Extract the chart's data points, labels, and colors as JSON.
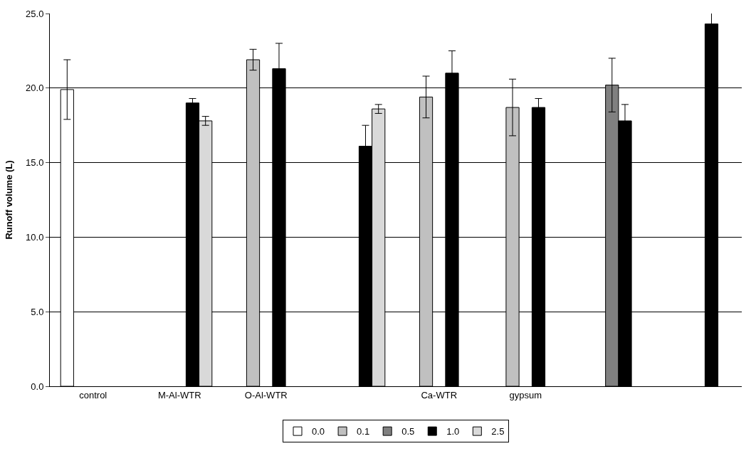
{
  "chart_data": {
    "type": "bar",
    "ylabel": "Runoff volume (L)",
    "categories": [
      "control",
      "M-Al-WTR",
      "O-Al-WTR",
      null,
      "Ca-WTR",
      "gypsum",
      null,
      null
    ],
    "series": [
      {
        "name": "0.0",
        "color": "#ffffff",
        "values": [
          19.9,
          null,
          null,
          null,
          null,
          null,
          null,
          null
        ],
        "errors": [
          2.0,
          null,
          null,
          null,
          null,
          null,
          null,
          null
        ]
      },
      {
        "name": "0.1",
        "color": "#c0c0c0",
        "values": [
          null,
          null,
          21.9,
          null,
          19.4,
          18.7,
          null,
          null
        ],
        "errors": [
          null,
          null,
          0.7,
          null,
          1.4,
          1.9,
          null,
          null
        ]
      },
      {
        "name": "0.5",
        "color": "#808080",
        "values": [
          null,
          null,
          null,
          null,
          null,
          null,
          20.2,
          null
        ],
        "errors": [
          null,
          null,
          null,
          null,
          null,
          null,
          1.8,
          null
        ]
      },
      {
        "name": "1.0",
        "color": "#000000",
        "values": [
          null,
          19.0,
          21.3,
          16.1,
          21.0,
          18.7,
          17.8,
          24.3
        ],
        "errors": [
          null,
          0.3,
          1.7,
          1.4,
          1.5,
          0.6,
          1.1,
          1.0
        ]
      },
      {
        "name": "2.5",
        "color": "#d9d9d9",
        "values": [
          null,
          17.8,
          null,
          18.6,
          null,
          null,
          null,
          null
        ],
        "errors": [
          null,
          0.3,
          null,
          0.3,
          null,
          null,
          null,
          null
        ]
      }
    ],
    "ylim": [
      0,
      25
    ],
    "yticks": [
      {
        "value": 0,
        "label": "0.0"
      },
      {
        "value": 5,
        "label": "5.0"
      },
      {
        "value": 10,
        "label": "10.0"
      },
      {
        "value": 15,
        "label": "15.0"
      },
      {
        "value": 20,
        "label": "20.0"
      },
      {
        "value": 25,
        "label": "25.0"
      }
    ],
    "grid": "y",
    "legend": "bottom"
  }
}
